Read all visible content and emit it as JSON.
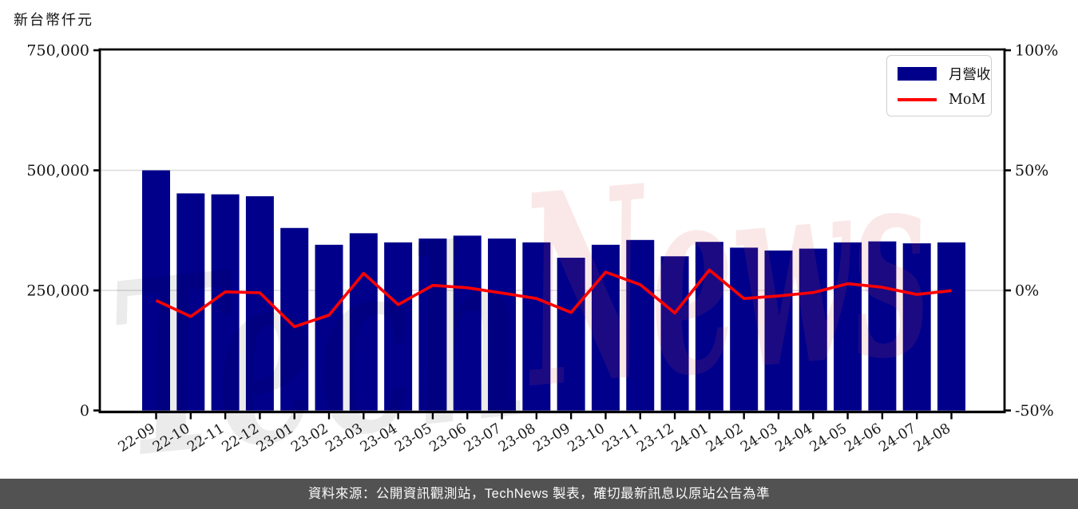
{
  "title": {
    "unit_label": "新台幣仟元"
  },
  "legend": {
    "revenue_label": "月營收",
    "mom_label": "MoM"
  },
  "footer": {
    "source_text": "資料來源：公開資訊觀測站，TechNews 製表，確切最新訊息以原站公告為準",
    "bg_color": "#525252"
  },
  "watermark": {
    "text_gray": "Tech",
    "text_red": "News",
    "gray_color": "#000000",
    "red_color": "#d84b4b"
  },
  "chart_data": {
    "type": "bar+line",
    "title": "",
    "xlabel": "",
    "ylabel_left": "新台幣仟元",
    "categories": [
      "22-09",
      "22-10",
      "22-11",
      "22-12",
      "23-01",
      "23-02",
      "23-03",
      "23-04",
      "23-05",
      "23-06",
      "23-07",
      "23-08",
      "23-09",
      "23-10",
      "23-11",
      "23-12",
      "24-01",
      "24-02",
      "24-03",
      "24-04",
      "24-05",
      "24-06",
      "24-07",
      "24-08"
    ],
    "series": [
      {
        "name": "月營收",
        "type": "bar",
        "axis": "left",
        "color": "#00008b",
        "values": [
          500000,
          452000,
          450000,
          446000,
          380000,
          345000,
          369000,
          350000,
          358000,
          364000,
          358000,
          350000,
          318000,
          345000,
          355000,
          321000,
          351000,
          339000,
          333000,
          337000,
          350000,
          352000,
          348000,
          350000
        ]
      },
      {
        "name": "MoM",
        "type": "line",
        "axis": "right",
        "color": "#ff0000",
        "values_pct": [
          -4.2,
          -10.9,
          -0.6,
          -1.0,
          -15.1,
          -10.3,
          7.1,
          -5.9,
          2.1,
          1.1,
          -1.1,
          -3.4,
          -9.2,
          7.6,
          2.4,
          -9.4,
          8.5,
          -3.4,
          -2.3,
          -0.9,
          2.8,
          1.3,
          -1.7,
          -0.1
        ]
      }
    ],
    "left_axis": {
      "range": [
        0,
        750000
      ],
      "ticks": [
        {
          "value": 750000,
          "label": "750,000",
          "grid": false
        },
        {
          "value": 500000,
          "label": "500,000",
          "grid": true
        },
        {
          "value": 250000,
          "label": "250,000",
          "grid": true
        },
        {
          "value": 0,
          "label": "0",
          "grid": false
        }
      ]
    },
    "right_axis": {
      "range_pct": [
        -50,
        100
      ],
      "ticks": [
        {
          "value": 100,
          "label": "100%"
        },
        {
          "value": 50,
          "label": "50%"
        },
        {
          "value": 0,
          "label": "0%"
        },
        {
          "value": -50,
          "label": "-50%"
        }
      ]
    },
    "grid": "horizontal",
    "legend_position": "top-right",
    "gridline_color": "#dcdcdc"
  }
}
